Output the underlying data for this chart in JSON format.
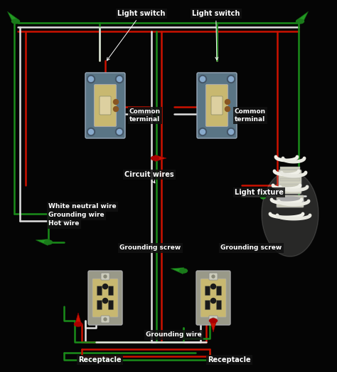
{
  "bg_color": "#050505",
  "red": "#cc1100",
  "white": "#e0e0e0",
  "green": "#1a8c1a",
  "label_color": "#ffffff",
  "label_bg": "#111111",
  "switch_metal": "#6a8a9a",
  "switch_face": "#c8b870",
  "outlet_face": "#c8b870",
  "outlet_metal": "#b0a880",
  "labels": {
    "ls1": "Light switch",
    "ls2": "Light switch",
    "ct1": "Common\nterminal",
    "ct2": "Common\nterminal",
    "cw": "Circuit wires",
    "wn": "White neutral wire",
    "gw": "Grounding wire",
    "hw": "Hot wire",
    "gs1": "Grounding screw",
    "gs2": "Grounding screw",
    "gwb": "Grounding wire",
    "r1": "Receptacle",
    "r2": "Receptacle",
    "lf": "Light fixture"
  }
}
